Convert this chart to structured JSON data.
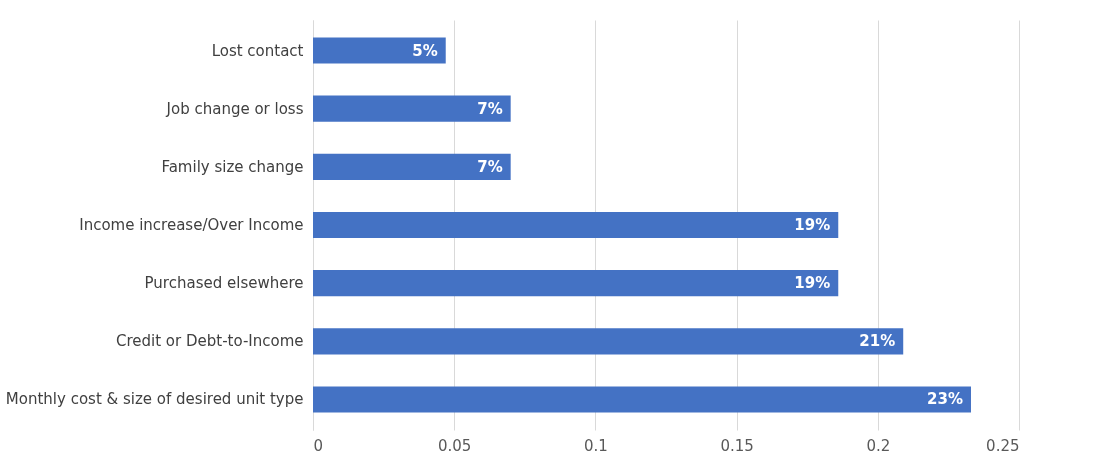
{
  "chart_data": {
    "type": "bar",
    "orientation": "horizontal",
    "categories": [
      "Lost contact",
      "Job change or loss",
      "Family size change",
      "Income increase/Over Income",
      "Purchased elsewhere",
      "Credit or Debt-to-Income",
      "Monthly cost & size of desired unit type"
    ],
    "values": [
      0.047,
      0.07,
      0.07,
      0.186,
      0.186,
      0.209,
      0.233
    ],
    "value_labels": [
      "5%",
      "7%",
      "7%",
      "19%",
      "19%",
      "21%",
      "23%"
    ],
    "color": "#4472c4",
    "xlim": [
      0,
      0.25
    ],
    "xticks": [
      0,
      0.05,
      0.1,
      0.15,
      0.2,
      0.25
    ],
    "grid": "x"
  }
}
